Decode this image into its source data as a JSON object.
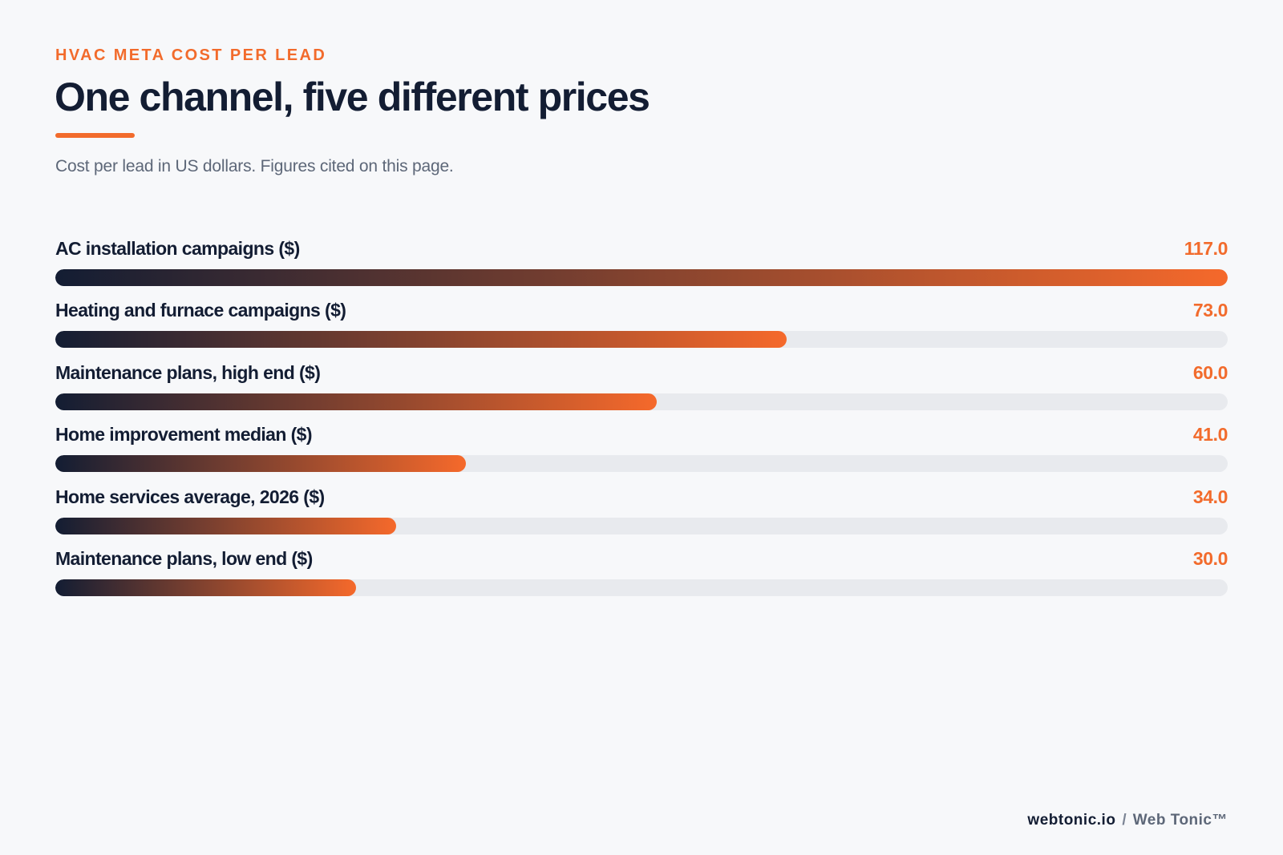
{
  "header": {
    "eyebrow": "HVAC META COST PER LEAD",
    "title": "One channel, five different prices",
    "subtitle": "Cost per lead in US dollars. Figures cited on this page."
  },
  "chart_data": {
    "type": "bar",
    "orientation": "horizontal",
    "categories": [
      "AC installation campaigns ($)",
      "Heating and furnace campaigns ($)",
      "Maintenance plans, high end ($)",
      "Home improvement median ($)",
      "Home services average, 2026 ($)",
      "Maintenance plans, low end ($)"
    ],
    "values": [
      117.0,
      73.0,
      60.0,
      41.0,
      34.0,
      30.0
    ],
    "value_labels": [
      "117.0",
      "73.0",
      "60.0",
      "41.0",
      "34.0",
      "30.0"
    ],
    "xlim": [
      0,
      117.0
    ],
    "grid": false,
    "colors": {
      "bar_start": "#131d33",
      "bar_end": "#f5692b",
      "track": "#e8eaee",
      "accent": "#f26b2c",
      "text": "#131d33"
    }
  },
  "footer": {
    "site": "webtonic.io",
    "separator": "/",
    "brand": "Web Tonic™"
  }
}
